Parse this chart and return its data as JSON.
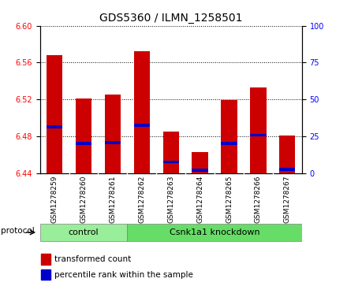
{
  "title": "GDS5360 / ILMN_1258501",
  "samples": [
    "GSM1278259",
    "GSM1278260",
    "GSM1278261",
    "GSM1278262",
    "GSM1278263",
    "GSM1278264",
    "GSM1278265",
    "GSM1278266",
    "GSM1278267"
  ],
  "bar_tops": [
    6.568,
    6.521,
    6.525,
    6.572,
    6.485,
    6.463,
    6.519,
    6.533,
    6.481
  ],
  "bar_bottom": 6.44,
  "blue_positions": [
    6.49,
    6.472,
    6.473,
    6.492,
    6.452,
    6.443,
    6.472,
    6.481,
    6.444
  ],
  "ylim": [
    6.44,
    6.6
  ],
  "yticks_left": [
    6.44,
    6.48,
    6.52,
    6.56,
    6.6
  ],
  "yticks_right": [
    0,
    25,
    50,
    75,
    100
  ],
  "bar_color": "#cc0000",
  "blue_color": "#0000cc",
  "bg_color": "#ffffff",
  "plot_bg": "#ffffff",
  "bar_width": 0.55,
  "groups": [
    {
      "label": "control",
      "indices": [
        0,
        1,
        2
      ],
      "color": "#99ee99"
    },
    {
      "label": "Csnk1a1 knockdown",
      "indices": [
        3,
        4,
        5,
        6,
        7,
        8
      ],
      "color": "#66dd66"
    }
  ],
  "protocol_label": "protocol",
  "legend_red": "transformed count",
  "legend_blue": "percentile rank within the sample",
  "title_fontsize": 10,
  "tick_fontsize": 7,
  "label_fontsize": 8
}
